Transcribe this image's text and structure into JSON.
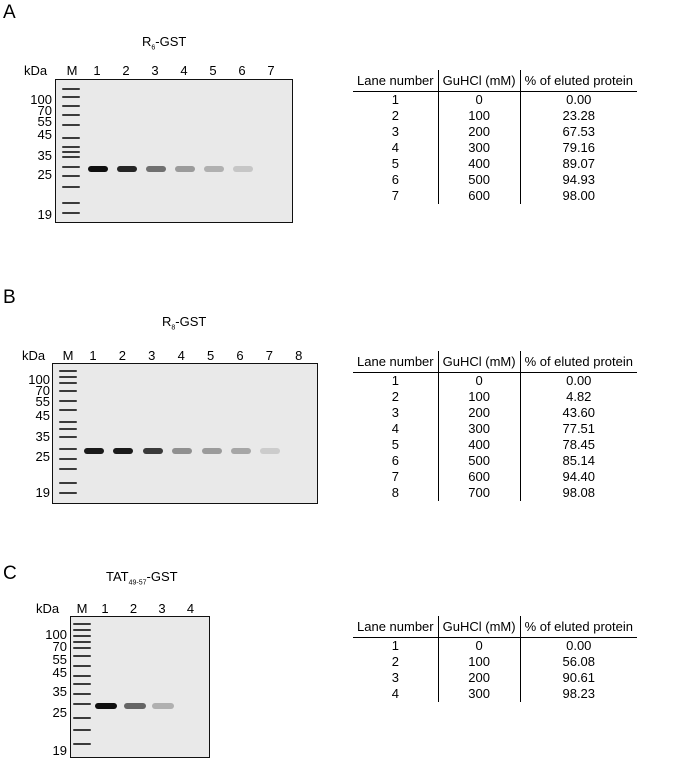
{
  "panels": [
    {
      "letter": "A",
      "title_main": "R",
      "title_sub": "6",
      "title_suffix": "-GST",
      "kda_label": "kDa",
      "marker_label": "M",
      "lanes": [
        "1",
        "2",
        "3",
        "4",
        "5",
        "6",
        "7"
      ],
      "mw_markers": [
        "100",
        "70",
        "55",
        "45",
        "35",
        "25",
        "19"
      ],
      "table": {
        "headers": [
          "Lane number",
          "GuHCl (mM)",
          "% of eluted protein"
        ],
        "rows": [
          [
            "1",
            "0",
            "0.00"
          ],
          [
            "2",
            "100",
            "23.28"
          ],
          [
            "3",
            "200",
            "67.53"
          ],
          [
            "4",
            "300",
            "79.16"
          ],
          [
            "5",
            "400",
            "89.07"
          ],
          [
            "6",
            "500",
            "94.93"
          ],
          [
            "7",
            "600",
            "98.00"
          ]
        ]
      },
      "band_intensity": [
        1.0,
        0.9,
        0.55,
        0.35,
        0.25,
        0.15,
        0.0
      ]
    },
    {
      "letter": "B",
      "title_main": "R",
      "title_sub": "8",
      "title_suffix": "-GST",
      "kda_label": "kDa",
      "marker_label": "M",
      "lanes": [
        "1",
        "2",
        "3",
        "4",
        "5",
        "6",
        "7",
        "8"
      ],
      "mw_markers": [
        "100",
        "70",
        "55",
        "45",
        "35",
        "25",
        "19"
      ],
      "table": {
        "headers": [
          "Lane number",
          "GuHCl (mM)",
          "% of eluted protein"
        ],
        "rows": [
          [
            "1",
            "0",
            "0.00"
          ],
          [
            "2",
            "100",
            "4.82"
          ],
          [
            "3",
            "200",
            "43.60"
          ],
          [
            "4",
            "300",
            "77.51"
          ],
          [
            "5",
            "400",
            "78.45"
          ],
          [
            "6",
            "500",
            "85.14"
          ],
          [
            "7",
            "600",
            "94.40"
          ],
          [
            "8",
            "700",
            "98.08"
          ]
        ]
      },
      "band_intensity": [
        0.95,
        0.95,
        0.8,
        0.4,
        0.35,
        0.3,
        0.12,
        0.0
      ]
    },
    {
      "letter": "C",
      "title_main": "TAT",
      "title_sub": "49-57",
      "title_suffix": "-GST",
      "kda_label": "kDa",
      "marker_label": "M",
      "lanes": [
        "1",
        "2",
        "3",
        "4"
      ],
      "mw_markers": [
        "100",
        "70",
        "55",
        "45",
        "35",
        "25",
        "19"
      ],
      "table": {
        "headers": [
          "Lane number",
          "GuHCl (mM)",
          "% of eluted protein"
        ],
        "rows": [
          [
            "1",
            "0",
            "0.00"
          ],
          [
            "2",
            "100",
            "56.08"
          ],
          [
            "3",
            "200",
            "90.61"
          ],
          [
            "4",
            "300",
            "98.23"
          ]
        ]
      },
      "band_intensity": [
        1.0,
        0.6,
        0.25,
        0.0
      ]
    }
  ]
}
